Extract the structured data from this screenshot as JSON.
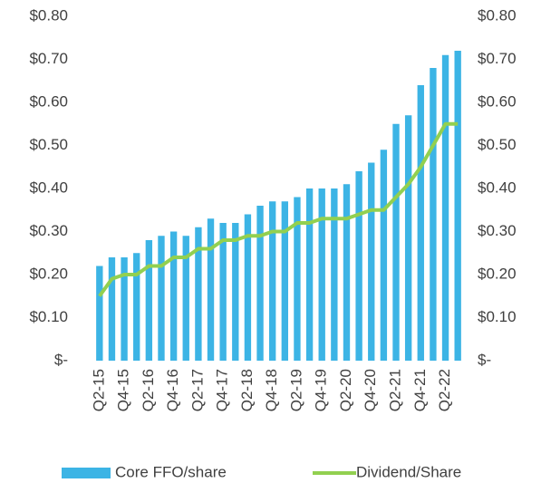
{
  "chart_data": {
    "type": "bar",
    "categories": [
      "Q2-15",
      null,
      "Q4-15",
      null,
      "Q2-16",
      null,
      "Q4-16",
      null,
      "Q2-17",
      null,
      "Q4-17",
      null,
      "Q2-18",
      null,
      "Q4-18",
      null,
      "Q2-19",
      null,
      "Q4-19",
      null,
      "Q2-20",
      null,
      "Q4-20",
      null,
      "Q2-21",
      null,
      "Q4-21",
      null,
      "Q2-22",
      null
    ],
    "series": [
      {
        "name": "Core FFO/share",
        "type": "bar",
        "color": "#3cb4e5",
        "values": [
          0.22,
          0.24,
          0.24,
          0.25,
          0.28,
          0.29,
          0.3,
          0.29,
          0.31,
          0.33,
          0.32,
          0.32,
          0.34,
          0.36,
          0.37,
          0.37,
          0.38,
          0.4,
          0.4,
          0.4,
          0.41,
          0.44,
          0.46,
          0.49,
          0.55,
          0.57,
          0.64,
          0.68,
          0.71,
          0.72
        ]
      },
      {
        "name": "Dividend/Share",
        "type": "line",
        "axis": "y2",
        "color": "#92d050",
        "values": [
          0.15,
          0.19,
          0.2,
          0.2,
          0.22,
          0.22,
          0.24,
          0.24,
          0.26,
          0.26,
          0.28,
          0.28,
          0.29,
          0.29,
          0.3,
          0.3,
          0.32,
          0.32,
          0.33,
          0.33,
          0.33,
          0.34,
          0.35,
          0.35,
          0.38,
          0.41,
          0.45,
          0.5,
          0.55,
          0.55
        ]
      }
    ],
    "ylim": [
      0,
      0.8
    ],
    "yticks": [
      {
        "value": 0,
        "label": "$-"
      },
      {
        "value": 0.1,
        "label": "$0.10"
      },
      {
        "value": 0.2,
        "label": "$0.20"
      },
      {
        "value": 0.3,
        "label": "$0.30"
      },
      {
        "value": 0.4,
        "label": "$0.40"
      },
      {
        "value": 0.5,
        "label": "$0.50"
      },
      {
        "value": 0.6,
        "label": "$0.60"
      },
      {
        "value": 0.7,
        "label": "$0.70"
      },
      {
        "value": 0.8,
        "label": "$0.80"
      }
    ],
    "y2lim": [
      0,
      0.8
    ],
    "y2ticks": [
      {
        "value": 0,
        "label": "$-"
      },
      {
        "value": 0.1,
        "label": "$0.10"
      },
      {
        "value": 0.2,
        "label": "$0.20"
      },
      {
        "value": 0.3,
        "label": "$0.30"
      },
      {
        "value": 0.4,
        "label": "$0.40"
      },
      {
        "value": 0.5,
        "label": "$0.50"
      },
      {
        "value": 0.6,
        "label": "$0.60"
      },
      {
        "value": 0.7,
        "label": "$0.70"
      },
      {
        "value": 0.8,
        "label": "$0.80"
      }
    ],
    "legend": "bottom"
  }
}
